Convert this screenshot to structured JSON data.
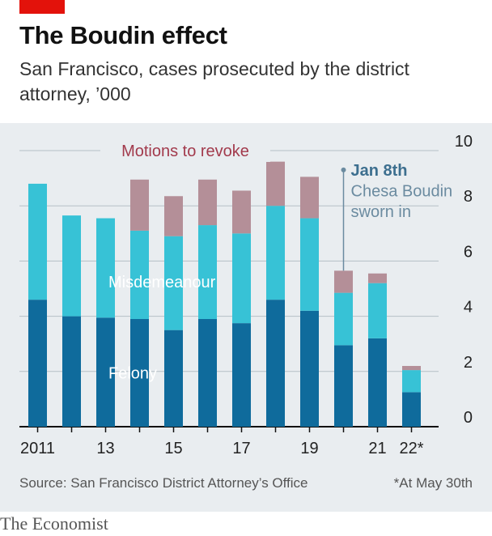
{
  "header": {
    "title": "The Boudin effect",
    "subtitle": "San Francisco, cases prosecuted by the district attorney, ’000"
  },
  "footer": {
    "source": "Source: San Francisco District Attorney’s Office",
    "note": "*At May 30th",
    "brand": "The Economist"
  },
  "colors": {
    "felony": "#0f6b9c",
    "misdemeanour": "#37c2d6",
    "motions": "#b48f98",
    "motions_label": "#a23a4c",
    "annotation_heading": "#3d6f8f",
    "annotation_text": "#6b8ba0",
    "brand_red": "#e3120b"
  },
  "chart_data": {
    "type": "bar",
    "stacked": true,
    "years": [
      "2011",
      "2012",
      "2013",
      "2014",
      "2015",
      "2016",
      "2017",
      "2018",
      "2019",
      "2020",
      "2021",
      "2022"
    ],
    "xtick_labels": [
      "2011",
      "",
      "13",
      "",
      "15",
      "",
      "17",
      "",
      "19",
      "",
      "21",
      "22*"
    ],
    "series": [
      {
        "name": "Felony",
        "values": [
          4.6,
          4.0,
          3.95,
          3.9,
          3.5,
          3.9,
          3.75,
          4.6,
          4.2,
          2.95,
          3.2,
          1.25
        ]
      },
      {
        "name": "Misdemeanour",
        "values": [
          4.2,
          3.65,
          3.6,
          3.2,
          3.4,
          3.4,
          3.25,
          3.4,
          3.35,
          1.9,
          2.0,
          0.8
        ]
      },
      {
        "name": "Motions to revoke",
        "values": [
          0,
          0,
          0,
          1.85,
          1.45,
          1.65,
          1.55,
          1.6,
          1.5,
          0.8,
          0.35,
          0.15
        ]
      }
    ],
    "ylim": [
      0,
      10
    ],
    "yticks": [
      "0",
      "2",
      "4",
      "6",
      "8",
      "10"
    ],
    "grid": true,
    "annotation": {
      "year": "2020",
      "date": "Jan 8th",
      "text_line1": "Chesa Boudin",
      "text_line2": "sworn in"
    }
  }
}
